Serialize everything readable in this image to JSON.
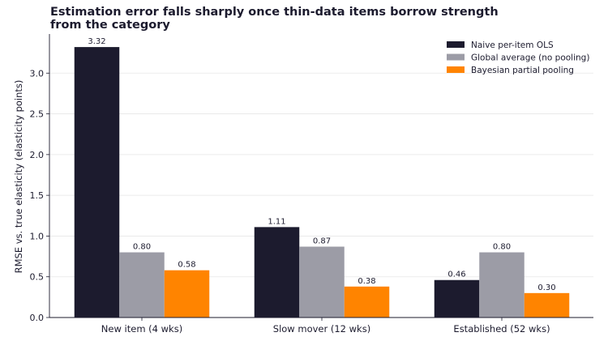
{
  "chart_data": {
    "type": "bar",
    "title": "Estimation error falls sharply once thin-data items borrow strength from the category",
    "xlabel": "",
    "ylabel": "RMSE vs. true elasticity (elasticity points)",
    "categories": [
      "New item (4 wks)",
      "Slow mover (12 wks)",
      "Established (52 wks)"
    ],
    "series": [
      {
        "name": "Naive per-item OLS",
        "values": [
          3.32,
          1.11,
          0.46
        ],
        "labels": [
          "3.32",
          "1.11",
          "0.46"
        ],
        "color": "#1c1b2e"
      },
      {
        "name": "Global average (no pooling)",
        "values": [
          0.8,
          0.87,
          0.8
        ],
        "labels": [
          "0.80",
          "0.87",
          "0.80"
        ],
        "color": "#9c9ca6"
      },
      {
        "name": "Bayesian partial pooling",
        "values": [
          0.58,
          0.38,
          0.3
        ],
        "labels": [
          "0.58",
          "0.38",
          "0.30"
        ],
        "color": "#ff8400"
      }
    ],
    "yticks": [
      "0.0",
      "0.5",
      "1.0",
      "1.5",
      "2.0",
      "2.5",
      "3.0"
    ],
    "ylim": [
      0,
      3.48
    ],
    "grid": "horizontal",
    "legend_position": "top-right"
  }
}
